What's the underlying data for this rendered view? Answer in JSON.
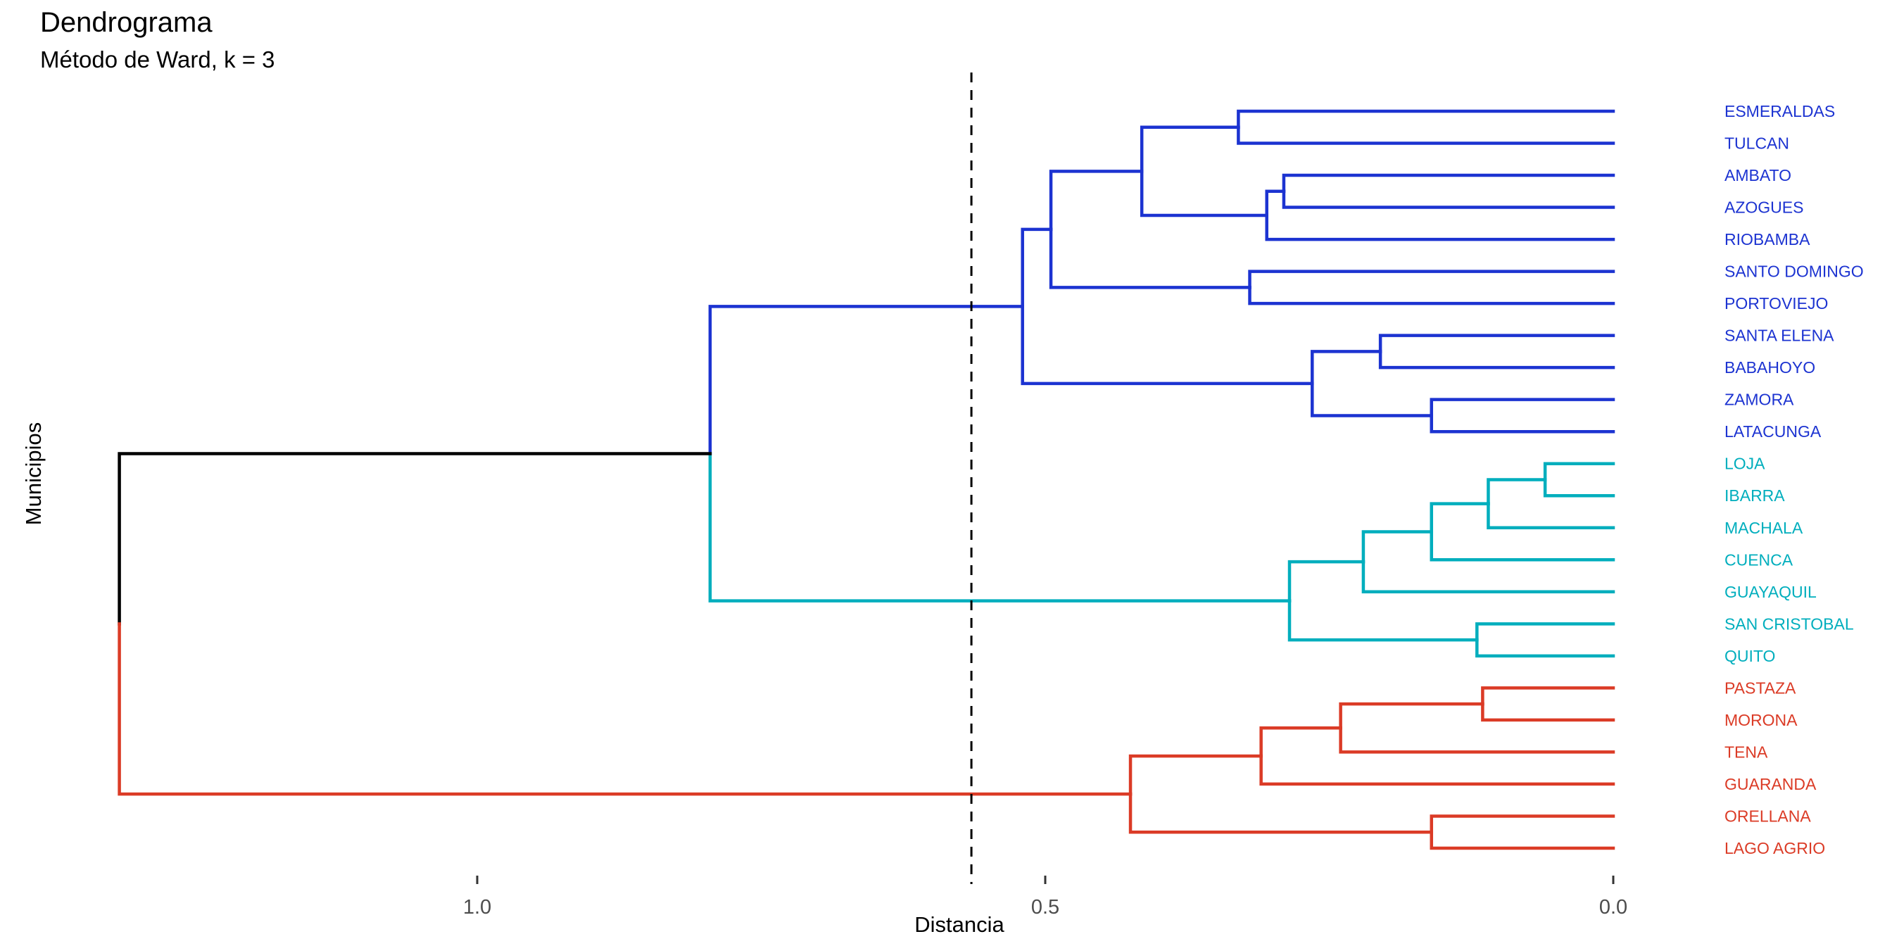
{
  "chart_data": {
    "type": "dendrogram",
    "title": "Dendrograma",
    "subtitle": "Método de Ward, k = 3",
    "xlabel": "Distancia",
    "ylabel": "Municipios",
    "axis": {
      "ticks": [
        {
          "label": "1.0",
          "value": 1.0
        },
        {
          "label": "0.5",
          "value": 0.5
        },
        {
          "label": "0.0",
          "value": 0.0
        }
      ],
      "range": [
        0,
        1.35
      ],
      "direction": "distance decreases to the right, leaves at 0.0",
      "grid": "off"
    },
    "cut_line": {
      "value": 0.565,
      "style": "dashed",
      "color": "#000000"
    },
    "k": 3,
    "colors": {
      "blue": "#1C33D1",
      "cyan": "#00AEBD",
      "red": "#DB3B26",
      "trunk": "#000000",
      "tick_text": "#4d4d4d",
      "tick_mark": "#333333"
    },
    "leaves": [
      {
        "name": "ESMERALDAS",
        "cluster": "blue"
      },
      {
        "name": "TULCAN",
        "cluster": "blue"
      },
      {
        "name": "AMBATO",
        "cluster": "blue"
      },
      {
        "name": "AZOGUES",
        "cluster": "blue"
      },
      {
        "name": "RIOBAMBA",
        "cluster": "blue"
      },
      {
        "name": "SANTO DOMINGO",
        "cluster": "blue"
      },
      {
        "name": "PORTOVIEJO",
        "cluster": "blue"
      },
      {
        "name": "SANTA ELENA",
        "cluster": "blue"
      },
      {
        "name": "BABAHOYO",
        "cluster": "blue"
      },
      {
        "name": "ZAMORA",
        "cluster": "blue"
      },
      {
        "name": "LATACUNGA",
        "cluster": "blue"
      },
      {
        "name": "LOJA",
        "cluster": "cyan"
      },
      {
        "name": "IBARRA",
        "cluster": "cyan"
      },
      {
        "name": "MACHALA",
        "cluster": "cyan"
      },
      {
        "name": "CUENCA",
        "cluster": "cyan"
      },
      {
        "name": "GUAYAQUIL",
        "cluster": "cyan"
      },
      {
        "name": "SAN CRISTOBAL",
        "cluster": "cyan"
      },
      {
        "name": "QUITO",
        "cluster": "cyan"
      },
      {
        "name": "PASTAZA",
        "cluster": "red"
      },
      {
        "name": "MORONA",
        "cluster": "red"
      },
      {
        "name": "TENA",
        "cluster": "red"
      },
      {
        "name": "GUARANDA",
        "cluster": "red"
      },
      {
        "name": "ORELLANA",
        "cluster": "red"
      },
      {
        "name": "LAGO AGRIO",
        "cluster": "red"
      }
    ],
    "tree": {
      "h": 1.315,
      "colors": [
        "trunk",
        "red"
      ],
      "c": [
        {
          "h": 0.795,
          "colors": [
            "blue",
            "cyan"
          ],
          "c": [
            {
              "h": 0.52,
              "colors": [
                "blue",
                "blue"
              ],
              "c": [
                {
                  "h": 0.495,
                  "colors": [
                    "blue",
                    "blue"
                  ],
                  "c": [
                    {
                      "h": 0.415,
                      "colors": [
                        "blue",
                        "blue"
                      ],
                      "c": [
                        {
                          "h": 0.33,
                          "colors": [
                            "blue",
                            "blue"
                          ],
                          "c": [
                            "ESMERALDAS",
                            "TULCAN"
                          ]
                        },
                        {
                          "h": 0.305,
                          "colors": [
                            "blue",
                            "blue"
                          ],
                          "c": [
                            {
                              "h": 0.29,
                              "colors": [
                                "blue",
                                "blue"
                              ],
                              "c": [
                                "AMBATO",
                                "AZOGUES"
                              ]
                            },
                            "RIOBAMBA"
                          ]
                        }
                      ]
                    },
                    {
                      "h": 0.32,
                      "colors": [
                        "blue",
                        "blue"
                      ],
                      "c": [
                        "SANTO DOMINGO",
                        "PORTOVIEJO"
                      ]
                    }
                  ]
                },
                {
                  "h": 0.265,
                  "colors": [
                    "blue",
                    "blue"
                  ],
                  "c": [
                    {
                      "h": 0.205,
                      "colors": [
                        "blue",
                        "blue"
                      ],
                      "c": [
                        "SANTA ELENA",
                        "BABAHOYO"
                      ]
                    },
                    {
                      "h": 0.16,
                      "colors": [
                        "blue",
                        "blue"
                      ],
                      "c": [
                        "ZAMORA",
                        "LATACUNGA"
                      ]
                    }
                  ]
                }
              ]
            },
            {
              "h": 0.285,
              "colors": [
                "cyan",
                "cyan"
              ],
              "c": [
                {
                  "h": 0.22,
                  "colors": [
                    "cyan",
                    "cyan"
                  ],
                  "c": [
                    {
                      "h": 0.16,
                      "colors": [
                        "cyan",
                        "cyan"
                      ],
                      "c": [
                        {
                          "h": 0.11,
                          "colors": [
                            "cyan",
                            "cyan"
                          ],
                          "c": [
                            {
                              "h": 0.06,
                              "colors": [
                                "cyan",
                                "cyan"
                              ],
                              "c": [
                                "LOJA",
                                "IBARRA"
                              ]
                            },
                            "MACHALA"
                          ]
                        },
                        "CUENCA"
                      ]
                    },
                    "GUAYAQUIL"
                  ]
                },
                {
                  "h": 0.12,
                  "colors": [
                    "cyan",
                    "cyan"
                  ],
                  "c": [
                    "SAN CRISTOBAL",
                    "QUITO"
                  ]
                }
              ]
            }
          ]
        },
        {
          "h": 0.425,
          "colors": [
            "red",
            "red"
          ],
          "c": [
            {
              "h": 0.31,
              "colors": [
                "red",
                "red"
              ],
              "c": [
                {
                  "h": 0.24,
                  "colors": [
                    "red",
                    "red"
                  ],
                  "c": [
                    {
                      "h": 0.115,
                      "colors": [
                        "red",
                        "red"
                      ],
                      "c": [
                        "PASTAZA",
                        "MORONA"
                      ]
                    },
                    "TENA"
                  ]
                },
                "GUARANDA"
              ]
            },
            {
              "h": 0.16,
              "colors": [
                "red",
                "red"
              ],
              "c": [
                "ORELLANA",
                "LAGO AGRIO"
              ]
            }
          ]
        }
      ]
    }
  }
}
